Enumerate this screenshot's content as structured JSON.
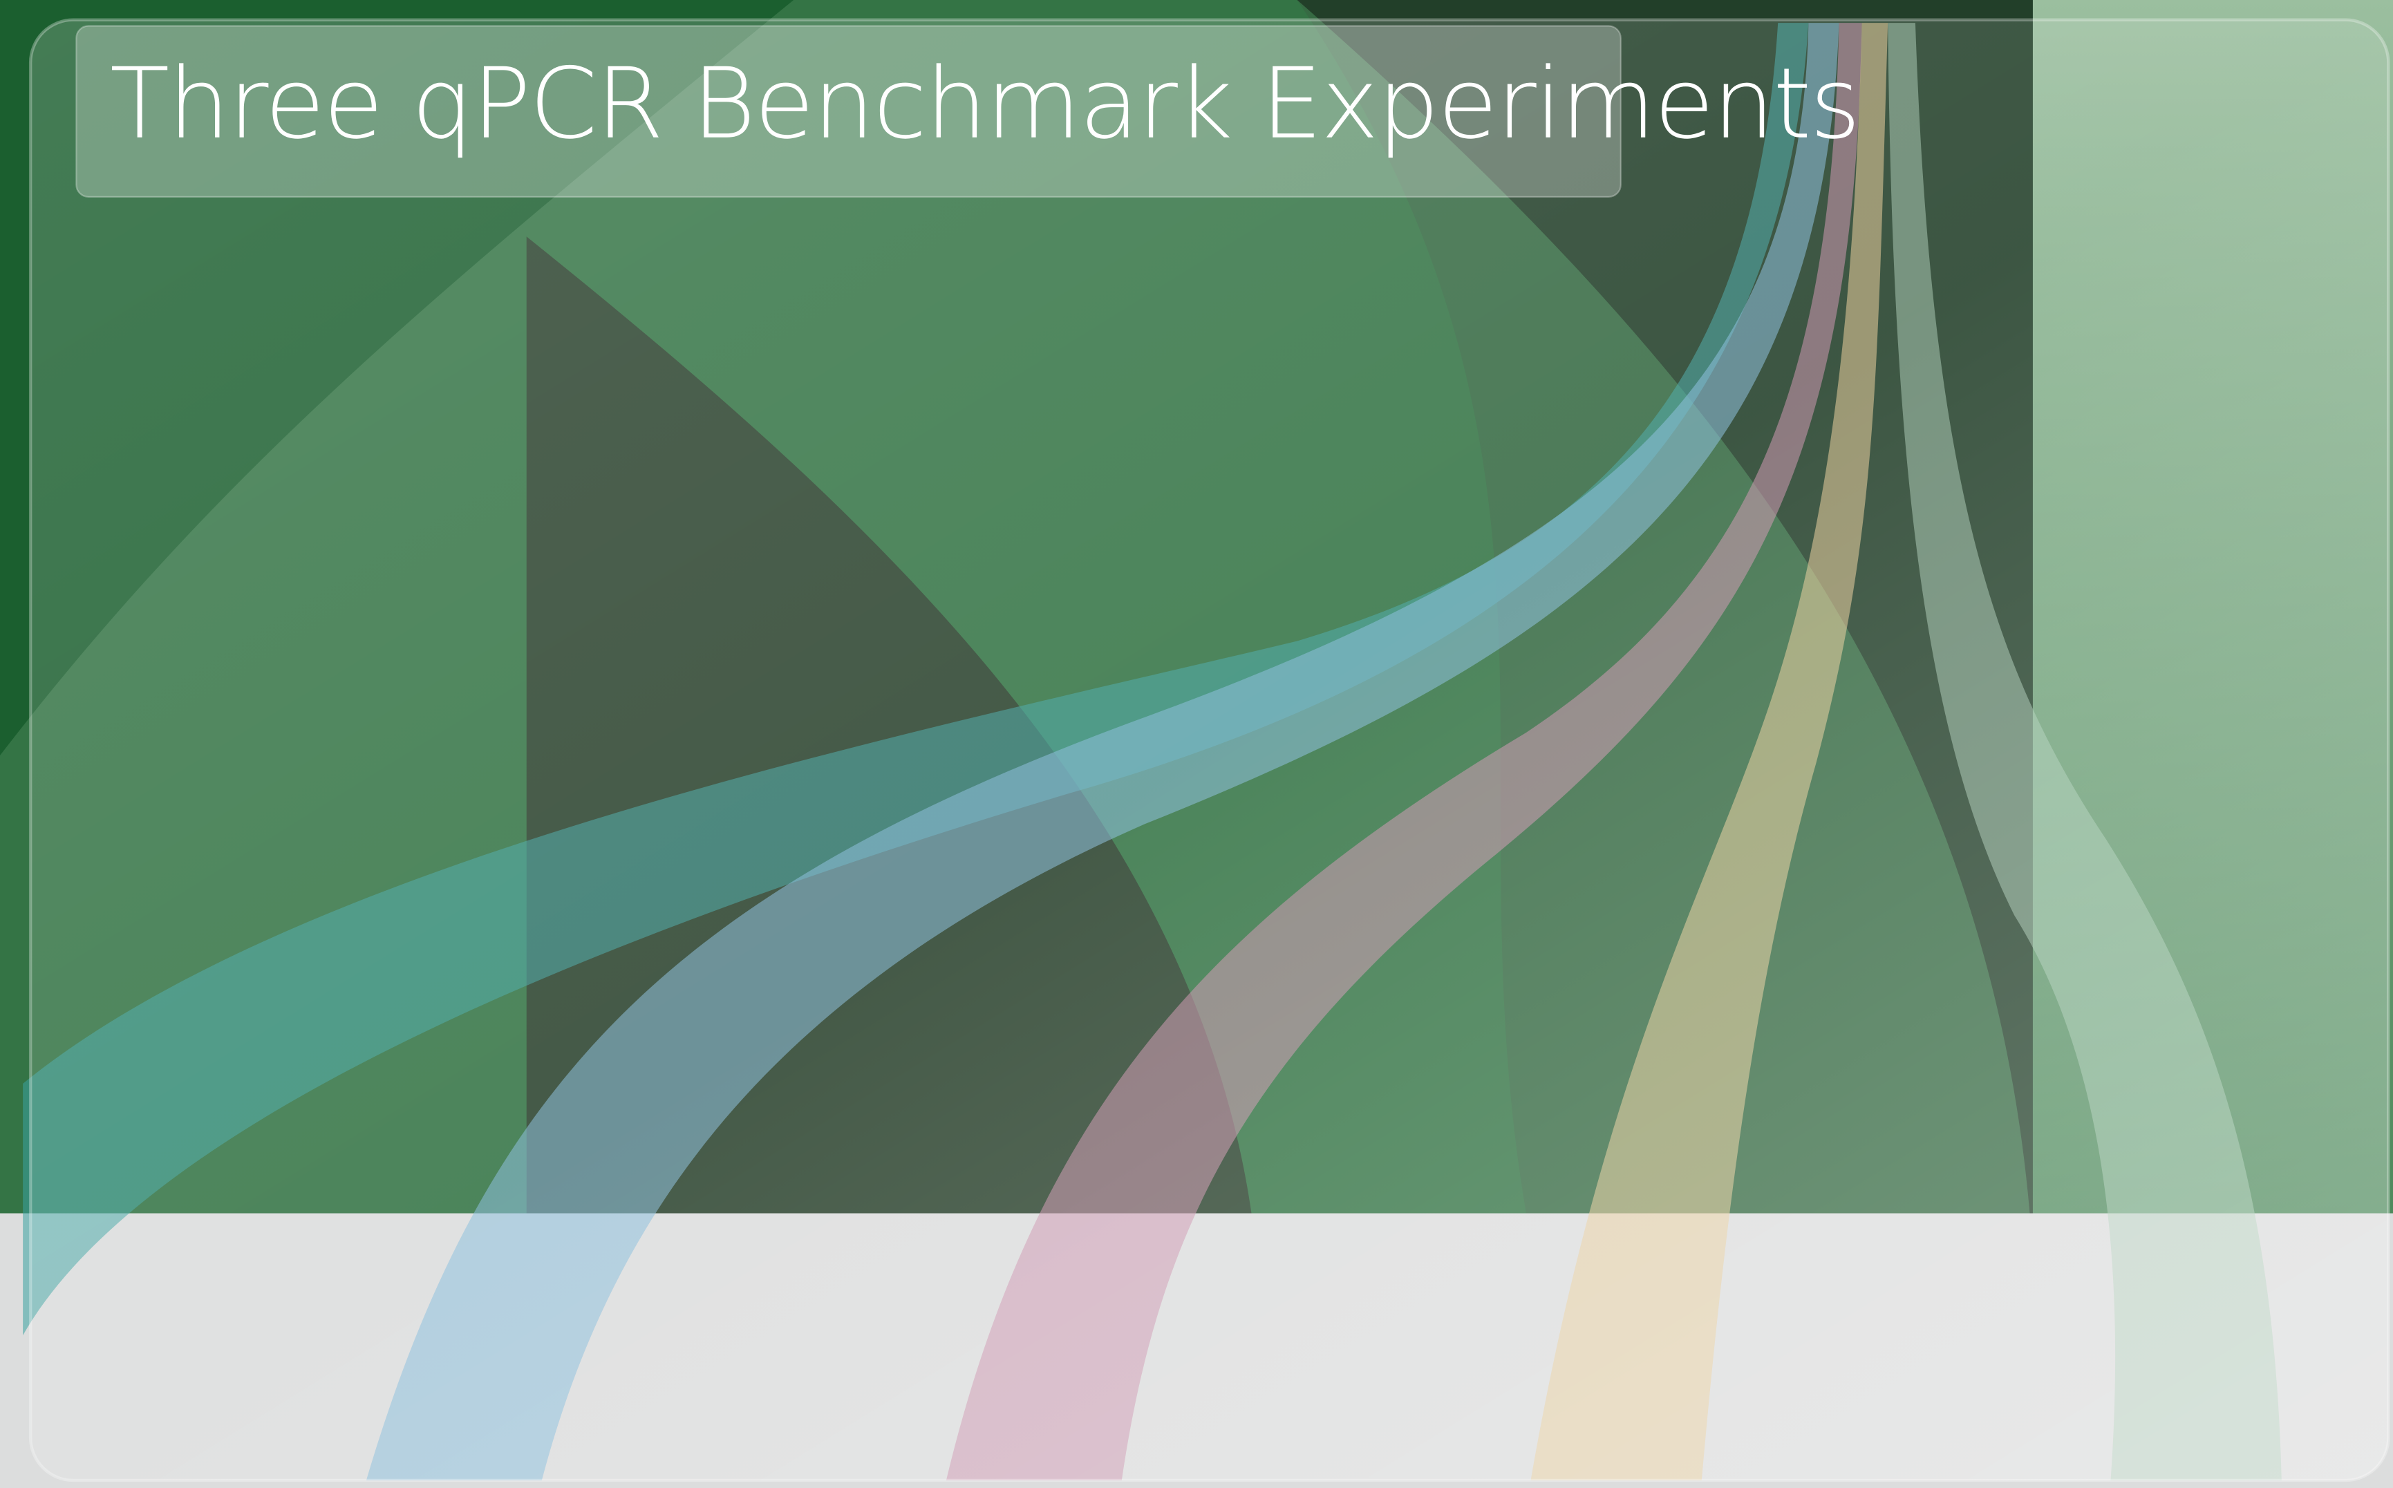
{
  "title": "Three qPCR Benchmark Experiments"
}
